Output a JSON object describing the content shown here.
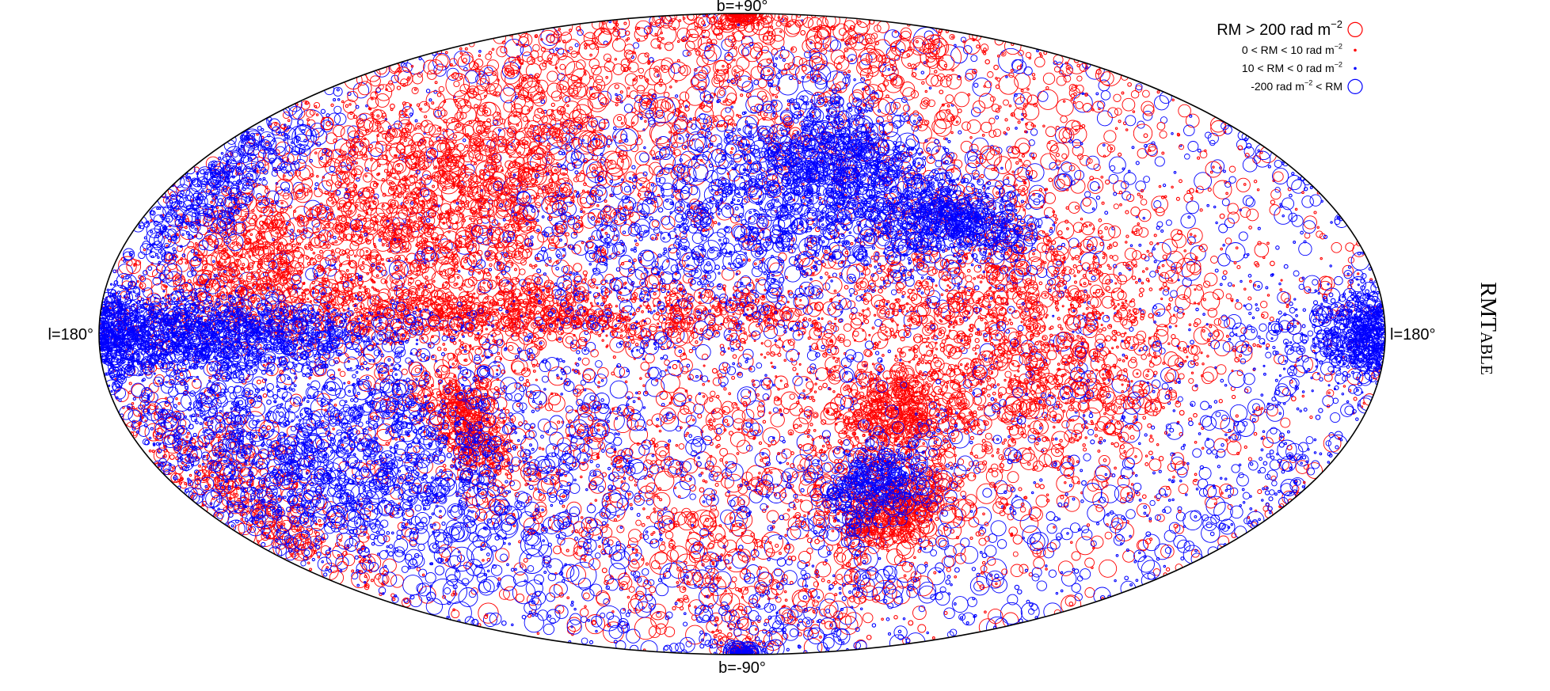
{
  "chart_data": {
    "type": "scatter",
    "projection": "aitoff",
    "coordinate_system": "galactic",
    "labels": {
      "top": "b=+90°",
      "bottom": "b=-90°",
      "left": "l=180°",
      "right": "l=180°"
    },
    "catalog_title": {
      "main": "RMT",
      "small_caps": "ABLE"
    },
    "legend": {
      "placement": "top-right",
      "entries": [
        {
          "pre": "RM > 200 rad m",
          "sup": "−2",
          "post": "",
          "color": "#ff0000",
          "marker": "large-circle"
        },
        {
          "pre": "0 < RM < 10 rad m",
          "sup": "−2",
          "post": "",
          "color": "#ff0000",
          "marker": "dot"
        },
        {
          "pre": "10 < RM < 0 rad m",
          "sup": "−2",
          "post": "",
          "color": "#0000ff",
          "marker": "dot"
        },
        {
          "pre": "-200 rad m",
          "sup": "−2",
          "post": " < RM",
          "color": "#0000ff",
          "marker": "large-circle"
        }
      ]
    },
    "series": [
      {
        "sign": "positive",
        "color": "#ff0000",
        "marker": "open-circle",
        "dense_regions": [
          {
            "l": 90,
            "b": 30,
            "spread_l": 28,
            "spread_b": 14,
            "weight": 1.0
          },
          {
            "l": -75,
            "b": 0,
            "spread_l": 25,
            "spread_b": 18,
            "weight": 1.1
          },
          {
            "l": 60,
            "b": 5,
            "spread_l": 50,
            "spread_b": 4,
            "weight": 0.9
          },
          {
            "l": 75,
            "b": -22,
            "spread_l": 6,
            "spread_b": 8,
            "weight": 0.3
          },
          {
            "l": 140,
            "b": 15,
            "spread_l": 14,
            "spread_b": 8,
            "weight": 0.35
          },
          {
            "l": -40,
            "b": -20,
            "spread_l": 8,
            "spread_b": 6,
            "weight": 0.3
          },
          {
            "l": -50,
            "b": -45,
            "spread_l": 10,
            "spread_b": 6,
            "weight": 0.25
          },
          {
            "l": -5,
            "b": -30,
            "spread_l": 55,
            "spread_b": 30,
            "weight": 0.9
          },
          {
            "l": 0,
            "b": 60,
            "spread_l": 160,
            "spread_b": 18,
            "weight": 0.8
          },
          {
            "l": 160,
            "b": -30,
            "spread_l": 12,
            "spread_b": 12,
            "weight": 0.3
          }
        ]
      },
      {
        "sign": "negative",
        "color": "#0000ff",
        "marker": "open-circle",
        "dense_regions": [
          {
            "l": 120,
            "b": -25,
            "spread_l": 40,
            "spread_b": 14,
            "weight": 1.3
          },
          {
            "l": 150,
            "b": 0,
            "spread_l": 30,
            "spread_b": 4,
            "weight": 1.1
          },
          {
            "l": -178,
            "b": 0,
            "spread_l": 10,
            "spread_b": 4,
            "weight": 0.4
          },
          {
            "l": -30,
            "b": 40,
            "spread_l": 18,
            "spread_b": 12,
            "weight": 0.7
          },
          {
            "l": 10,
            "b": 25,
            "spread_l": 30,
            "spread_b": 15,
            "weight": 0.6
          },
          {
            "l": -60,
            "b": 28,
            "spread_l": 10,
            "spread_b": 5,
            "weight": 0.35
          },
          {
            "l": -40,
            "b": -38,
            "spread_l": 8,
            "spread_b": 6,
            "weight": 0.25
          },
          {
            "l": 165,
            "b": 28,
            "spread_l": 10,
            "spread_b": 8,
            "weight": 0.3
          },
          {
            "l": 0,
            "b": -40,
            "spread_l": 160,
            "spread_b": 35,
            "weight": 0.6
          }
        ]
      }
    ]
  }
}
